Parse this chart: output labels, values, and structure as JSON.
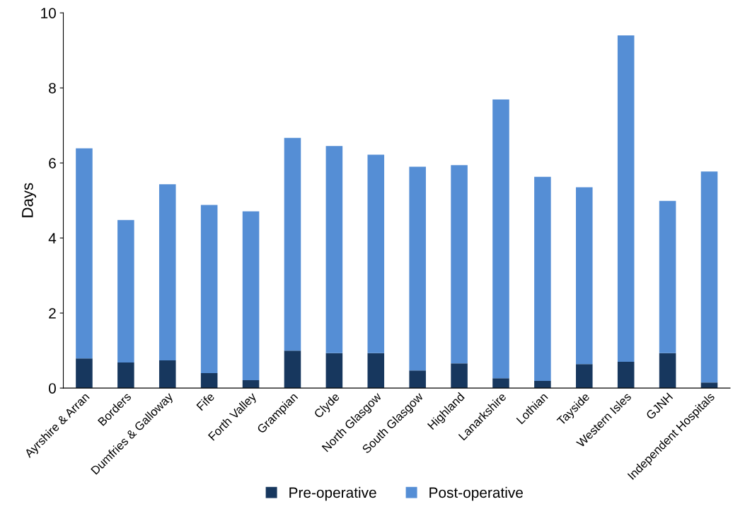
{
  "chart_data": {
    "type": "bar",
    "stacked": true,
    "ylabel": "Days",
    "categories": [
      "Ayrshire & Arran",
      "Borders",
      "Dumfries & Galloway",
      "Fife",
      "Forth Valley",
      "Grampian",
      "Clyde",
      "North Glasgow",
      "South Glasgow",
      "Highland",
      "Lanarkshire",
      "Lothian",
      "Tayside",
      "Western Isles",
      "GJNH",
      "Independent Hospitals"
    ],
    "series": [
      {
        "name": "Pre-operative",
        "color": "#17375e",
        "values": [
          0.79,
          0.68,
          0.74,
          0.4,
          0.21,
          1.0,
          0.93,
          0.93,
          0.47,
          0.66,
          0.26,
          0.19,
          0.64,
          0.7,
          0.93,
          0.15
        ]
      },
      {
        "name": "Post-operative",
        "color": "#558ed5",
        "values": [
          5.6,
          3.8,
          4.69,
          4.48,
          4.5,
          5.67,
          5.52,
          5.29,
          5.43,
          5.28,
          7.43,
          5.44,
          4.71,
          8.7,
          4.06,
          5.62
        ]
      }
    ],
    "ylim": [
      0,
      10
    ],
    "yticks": [
      0,
      2,
      4,
      6,
      8,
      10
    ],
    "grid": false,
    "legend": "bottom"
  }
}
